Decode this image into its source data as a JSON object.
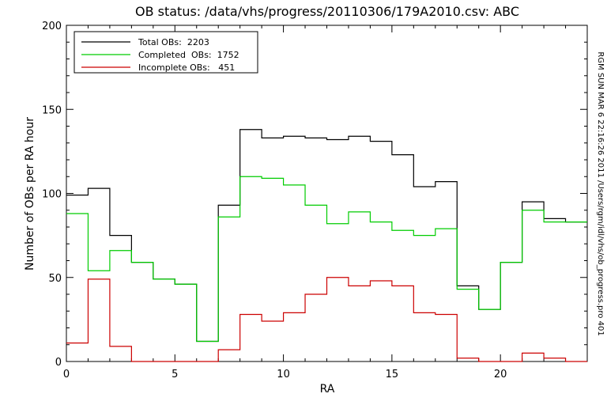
{
  "chart_data": {
    "type": "line",
    "step": true,
    "title": "OB status: /data/vhs/progress/20110306/179A2010.csv: ABC",
    "xlabel": "RA",
    "ylabel": "Number of OBs per RA hour",
    "xlim": [
      0,
      24
    ],
    "ylim": [
      0,
      200
    ],
    "xticks": [
      0,
      5,
      10,
      15,
      20
    ],
    "yticks": [
      0,
      50,
      100,
      150,
      200
    ],
    "grid": false,
    "legend_position": "top-left",
    "side_annotation": "RGM SUN MAR  6 22:16:26 2011 /Users/rgm/idl/vhs/ob_progress.pro 401",
    "x": [
      0,
      1,
      2,
      3,
      4,
      5,
      6,
      7,
      8,
      9,
      10,
      11,
      12,
      13,
      14,
      15,
      16,
      17,
      18,
      19,
      20,
      21,
      22,
      23
    ],
    "series": [
      {
        "name": "Total OBs:  2203",
        "color": "#000000",
        "values": [
          99,
          103,
          75,
          59,
          49,
          46,
          12,
          93,
          138,
          133,
          134,
          133,
          132,
          134,
          131,
          123,
          104,
          107,
          45,
          31,
          59,
          95,
          85,
          83
        ]
      },
      {
        "name": "Completed  OBs:  1752",
        "color": "#00cc00",
        "values": [
          88,
          54,
          66,
          59,
          49,
          46,
          12,
          86,
          110,
          109,
          105,
          93,
          82,
          89,
          83,
          78,
          75,
          79,
          43,
          31,
          59,
          90,
          83,
          83
        ]
      },
      {
        "name": "Incomplete OBs:   451",
        "color": "#cc0000",
        "values": [
          11,
          49,
          9,
          0,
          0,
          0,
          0,
          7,
          28,
          24,
          29,
          40,
          50,
          45,
          48,
          45,
          29,
          28,
          2,
          0,
          0,
          5,
          2,
          0
        ]
      }
    ]
  }
}
